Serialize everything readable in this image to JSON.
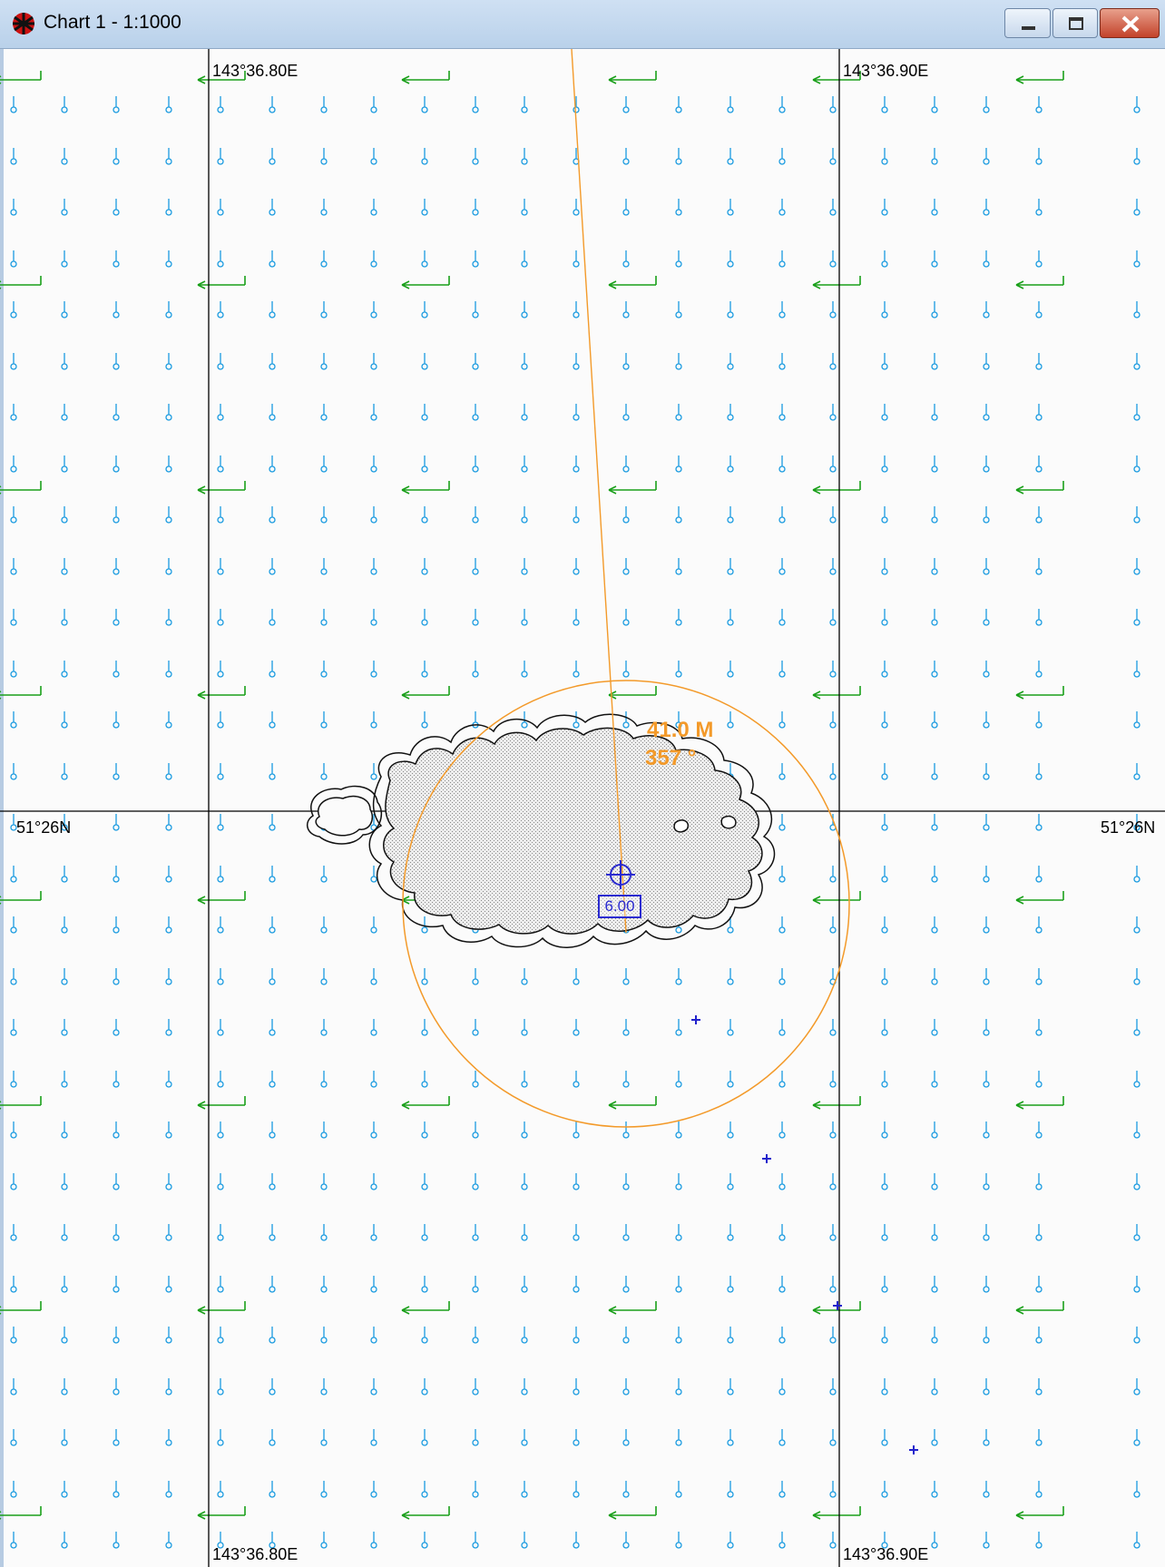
{
  "window": {
    "title": "Chart 1 - 1:1000",
    "app_icon": "chart-app-icon",
    "buttons": [
      "minimize-icon",
      "maximize-icon",
      "close-icon"
    ]
  },
  "chart": {
    "longitude_labels": {
      "left": "143°36.80E",
      "right": "143°36.90E"
    },
    "latitude_label": "51°26N",
    "range_label": "41.0 M",
    "bearing_label": "357 °",
    "depth_box_label": "6.00",
    "symbols": {
      "sounding_marker": "current-meter-icon",
      "current_arrow": "current-arrow-icon",
      "center_marker": "crosshair-target-icon",
      "position_mark": "plus-mark-icon"
    },
    "colors": {
      "sounding": "#1a9be0",
      "current_arrow": "#1aa01a",
      "range_ring": "#f39a2a",
      "island_outline": "#111111",
      "position_marks": "#2222cc",
      "grid": "#000000"
    }
  }
}
